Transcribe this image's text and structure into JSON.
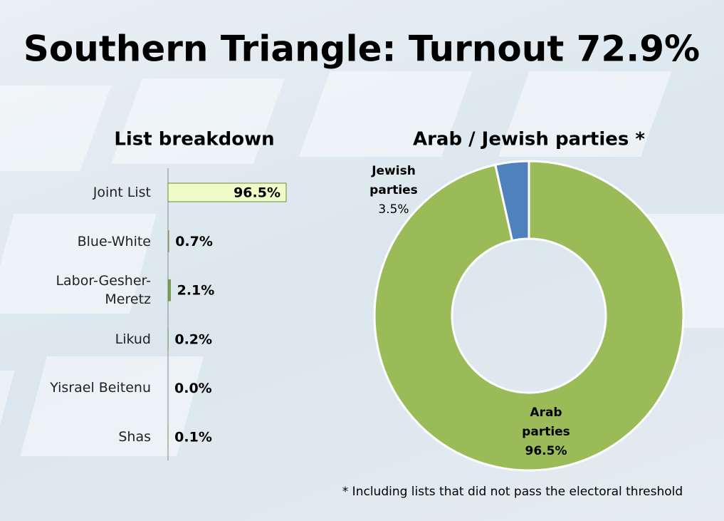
{
  "title": "Southern Triangle: Turnout 72.9%",
  "footnote": "* Including lists that did not pass the electoral threshold",
  "chart_data": [
    {
      "type": "hbar",
      "title": "List breakdown",
      "categories": [
        "Joint List",
        "Blue-White",
        "Labor-Gesher-Meretz",
        "Likud",
        "Yisrael Beitenu",
        "Shas"
      ],
      "values": [
        96.5,
        0.7,
        2.1,
        0.2,
        0.0,
        0.1
      ],
      "value_labels": [
        "96.5%",
        "0.7%",
        "2.1%",
        "0.2%",
        "0.0%",
        "0.1%"
      ],
      "colors": [
        "#f0fcc8",
        "#b08a6a",
        "#7a9a55",
        "#4f8aa8",
        "#8a6fae",
        "#6a5a9a"
      ]
    },
    {
      "type": "donut",
      "title": "Arab / Jewish parties *",
      "categories": [
        "Jewish parties",
        "Arab parties"
      ],
      "values": [
        3.5,
        96.5
      ],
      "value_labels": [
        "3.5%",
        "96.5%"
      ],
      "colors": [
        "#4f81bd",
        "#9bbb59"
      ]
    }
  ]
}
